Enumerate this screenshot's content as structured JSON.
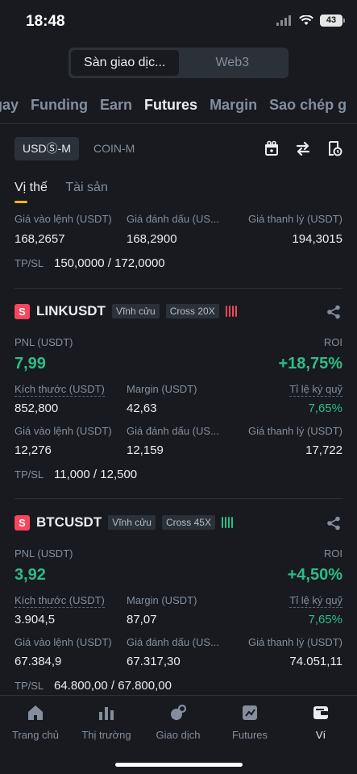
{
  "status": {
    "time": "18:48",
    "battery": "43"
  },
  "segment": {
    "active": "Sàn giao dịc...",
    "other": "Web3"
  },
  "top_tabs": [
    "gay",
    "Funding",
    "Earn",
    "Futures",
    "Margin",
    "Sao chép g"
  ],
  "sub": {
    "usds": "USDⓈ-M",
    "coin": "COIN-M"
  },
  "tabs2": [
    "Vị thế",
    "Tài sản"
  ],
  "first": {
    "entry_label": "Giá vào lệnh (USDT)",
    "entry": "168,2657",
    "mark_label": "Giá đánh dấu (US...",
    "mark": "168,2900",
    "liq_label": "Giá thanh lý (USDT)",
    "liq": "194,3015",
    "tpsl_label": "TP/SL",
    "tpsl": "150,0000 / 172,0000"
  },
  "positions": [
    {
      "badge": "S",
      "symbol": "LINKUSDT",
      "tag1": "Vĩnh cửu",
      "tag2": "Cross 20X",
      "signal": "red",
      "pnl_label": "PNL (USDT)",
      "pnl": "7,99",
      "roi_label": "ROI",
      "roi": "+18,75%",
      "size_label": "Kích thước (USDT)",
      "size": "852,800",
      "margin_label": "Margin (USDT)",
      "margin": "42,63",
      "ratio_label": "Tỉ lệ ký quỹ",
      "ratio": "7,65%",
      "entry_label": "Giá vào lệnh (USDT)",
      "entry": "12,276",
      "mark_label": "Giá đánh dấu (US...",
      "mark": "12,159",
      "liq_label": "Giá thanh lý (USDT)",
      "liq": "17,722",
      "tpsl_label": "TP/SL",
      "tpsl": "11,000 / 12,500"
    },
    {
      "badge": "S",
      "symbol": "BTCUSDT",
      "tag1": "Vĩnh cửu",
      "tag2": "Cross 45X",
      "signal": "green",
      "pnl_label": "PNL (USDT)",
      "pnl": "3,92",
      "roi_label": "ROI",
      "roi": "+4,50%",
      "size_label": "Kích thước (USDT)",
      "size": "3.904,5",
      "margin_label": "Margin (USDT)",
      "margin": "87,07",
      "ratio_label": "Tỉ lệ ký quỹ",
      "ratio": "7,65%",
      "entry_label": "Giá vào lệnh (USDT)",
      "entry": "67.384,9",
      "mark_label": "Giá đánh dấu (US...",
      "mark": "67.317,30",
      "liq_label": "Giá thanh lý (USDT)",
      "liq": "74.051,11",
      "tpsl_label": "TP/SL",
      "tpsl": "64.800,00 / 67.800,00"
    }
  ],
  "nav": [
    {
      "label": "Trang chủ",
      "icon": "home-icon"
    },
    {
      "label": "Thị trường",
      "icon": "market-icon"
    },
    {
      "label": "Giao dịch",
      "icon": "trade-icon"
    },
    {
      "label": "Futures",
      "icon": "futures-icon"
    },
    {
      "label": "Ví",
      "icon": "wallet-icon"
    }
  ],
  "colors": {
    "accent": "#f0b90b",
    "green": "#2ebd85",
    "red": "#f6465d"
  }
}
